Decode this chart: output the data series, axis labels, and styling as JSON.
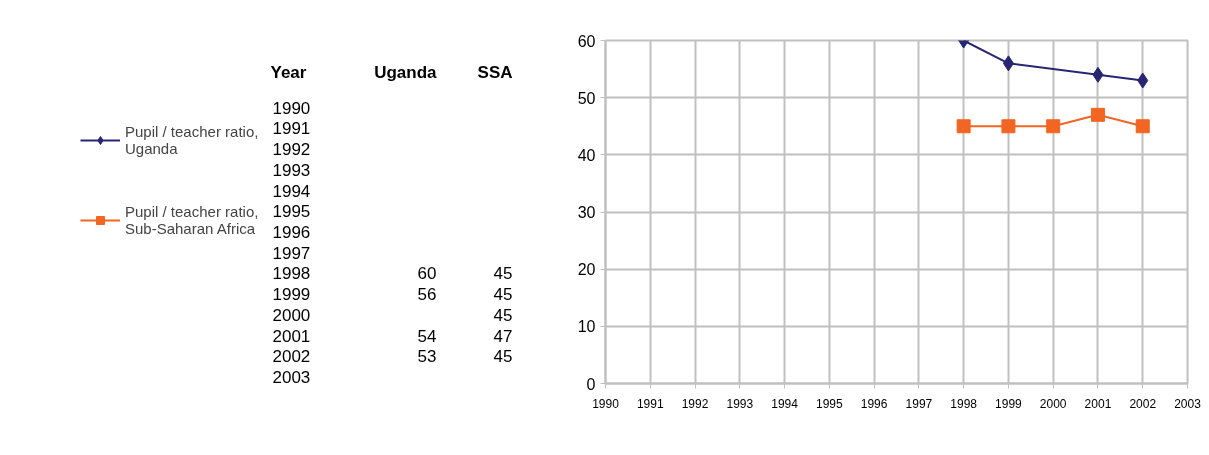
{
  "chart_data": [
    {
      "type": "heatmap",
      "categories": [
        "Uganda",
        "SSA"
      ],
      "annotations": [
        "Year"
      ],
      "y_categories": [
        "1990",
        "1991",
        "1992",
        "1993",
        "1994",
        "1995",
        "1996",
        "1997",
        "1998",
        "1999",
        "2000",
        "2001",
        "2002",
        "2003"
      ],
      "cells": [
        [
          null,
          null
        ],
        [
          null,
          null
        ],
        [
          null,
          null
        ],
        [
          null,
          null
        ],
        [
          null,
          null
        ],
        [
          null,
          null
        ],
        [
          null,
          null
        ],
        [
          null,
          null
        ],
        [
          60,
          45
        ],
        [
          56,
          45
        ],
        [
          null,
          45
        ],
        [
          54,
          47
        ],
        [
          53,
          45
        ],
        [
          null,
          null
        ]
      ],
      "data_labels": true
    },
    {
      "type": "line",
      "xlim": [
        1990,
        2003
      ],
      "xticks": [
        1990,
        1991,
        1992,
        1993,
        1994,
        1995,
        1996,
        1997,
        1998,
        1999,
        2000,
        2001,
        2002,
        2003
      ],
      "ylim": [
        0,
        60
      ],
      "yticks": [
        0,
        10,
        20,
        30,
        40,
        50,
        60
      ],
      "grid": true,
      "legend": "left",
      "series": [
        {
          "name": "Pupil / teacher ratio, Uganda",
          "color": "#262673",
          "marker": "diamond",
          "x": [
            1998,
            1999,
            2001,
            2002
          ],
          "values": [
            60,
            56,
            54,
            53
          ]
        },
        {
          "name": "Pupil / teacher ratio, Sub-Saharan Africa",
          "color": "#f26522",
          "marker": "square",
          "x": [
            1998,
            1999,
            2000,
            2001,
            2002
          ],
          "values": [
            45,
            45,
            45,
            47,
            45
          ]
        }
      ]
    }
  ]
}
